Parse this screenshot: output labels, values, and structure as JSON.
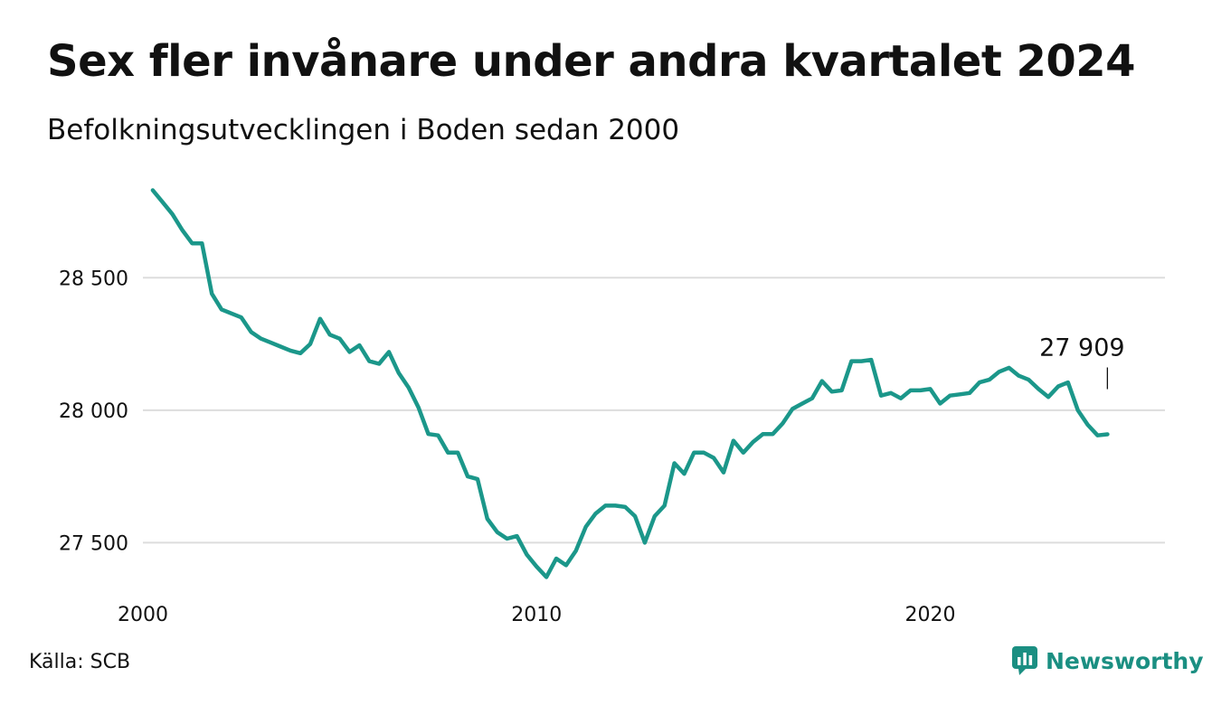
{
  "chart_data": {
    "type": "line",
    "title": "Sex fler invånare under andra kvartalet 2024",
    "subtitle": "Befolkningsutvecklingen i Boden sedan 2000",
    "xlabel": "",
    "ylabel": "",
    "x_ticks": [
      2000,
      2010,
      2020
    ],
    "y_ticks": [
      27500,
      28000,
      28500
    ],
    "y_tick_labels": [
      "27 500",
      "28 000",
      "28 500"
    ],
    "xlim": [
      2000,
      2025.25
    ],
    "ylim": [
      27290,
      28900
    ],
    "grid": "horizontal",
    "line_color": "#1b978a",
    "last_value_label": "27 909",
    "series": [
      {
        "x_start": 2000.25,
        "x_step": 0.25,
        "values": [
          28830,
          28785,
          28740,
          28680,
          28630,
          28630,
          28440,
          28380,
          28365,
          28350,
          28295,
          28270,
          28255,
          28240,
          28225,
          28215,
          28250,
          28345,
          28285,
          28270,
          28220,
          28245,
          28185,
          28175,
          28220,
          28140,
          28085,
          28010,
          27910,
          27905,
          27840,
          27840,
          27750,
          27740,
          27590,
          27540,
          27515,
          27525,
          27455,
          27410,
          27370,
          27440,
          27415,
          27470,
          27560,
          27610,
          27640,
          27640,
          27635,
          27600,
          27500,
          27600,
          27640,
          27800,
          27760,
          27840,
          27840,
          27820,
          27765,
          27885,
          27840,
          27880,
          27910,
          27910,
          27950,
          28005,
          28025,
          28045,
          28110,
          28070,
          28075,
          28185,
          28185,
          28190,
          28055,
          28065,
          28045,
          28075,
          28075,
          28080,
          28025,
          28055,
          28060,
          28065,
          28105,
          28115,
          28145,
          28160,
          28130,
          28115,
          28080,
          28050,
          28090,
          28105,
          28000,
          27945,
          27905,
          27909
        ]
      }
    ]
  },
  "footer": {
    "source": "Källa: SCB",
    "brand": "Newsworthy"
  },
  "colors": {
    "accent": "#1b978a",
    "grid": "#dddddd",
    "text": "#111111"
  }
}
